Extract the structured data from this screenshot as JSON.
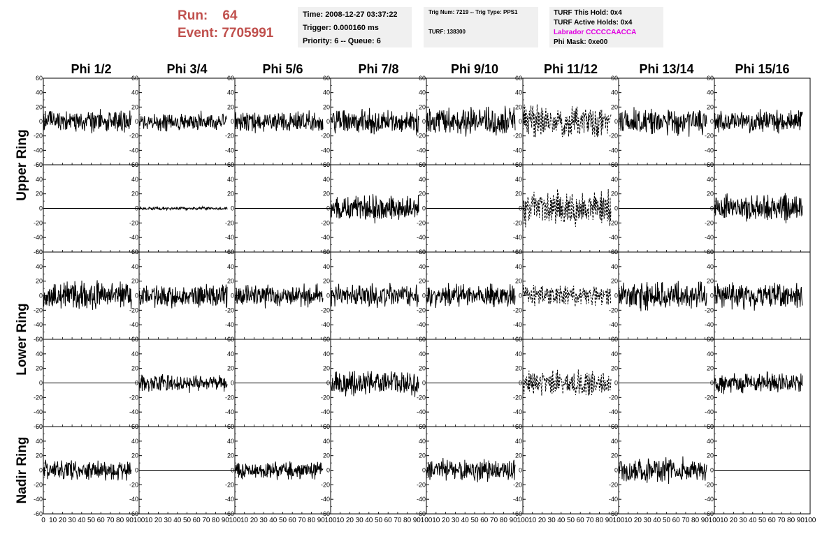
{
  "header": {
    "run_label": "Run:",
    "run_value": "64",
    "event_label": "Event:",
    "event_value": "7705991"
  },
  "info_box_1": {
    "time": "Time: 2008-12-27 03:37:22",
    "trigger": "Trigger: 0.000160 ms",
    "priority": "Priority: 6 -- Queue: 6"
  },
  "info_box_2": {
    "trig": "Trig Num: 7219 -- Trig Type: PPS1",
    "turf": "TURF: 138300"
  },
  "info_box_3": {
    "this_hold": "TURF This Hold: 0x4",
    "active_holds": "TURF Active Holds: 0x4",
    "labrador": "Labrador CCCCCAACCA",
    "phi_mask": "Phi Mask: 0xe00"
  },
  "colors": {
    "run_text": "#c0504d",
    "labrador_text": "#e000e0",
    "trace": "#000000",
    "info_box_bg": "#f0f0f0"
  },
  "chart_data": {
    "type": "line",
    "columns": [
      "Phi 1/2",
      "Phi 3/4",
      "Phi 5/6",
      "Phi 7/8",
      "Phi 9/10",
      "Phi 11/12",
      "Phi 13/14",
      "Phi 15/16"
    ],
    "row_groups": [
      {
        "label": "Upper Ring",
        "rows": [
          0,
          1
        ]
      },
      {
        "label": "Lower Ring",
        "rows": [
          2,
          3
        ]
      },
      {
        "label": "Nadir Ring",
        "rows": [
          4
        ]
      }
    ],
    "ylim": [
      -60,
      60
    ],
    "yticks": [
      -60,
      -40,
      -20,
      0,
      20,
      40,
      60
    ],
    "xlim": [
      0,
      100
    ],
    "xticks": [
      0,
      10,
      20,
      30,
      40,
      50,
      60,
      70,
      80,
      90,
      100
    ],
    "x_end": 92,
    "panels": [
      [
        {
          "type": "wave",
          "amp": 14,
          "dashed": false,
          "seed": 11
        },
        {
          "type": "wave",
          "amp": 12,
          "dashed": false,
          "seed": 12
        },
        {
          "type": "wave",
          "amp": 13,
          "dashed": false,
          "seed": 13
        },
        {
          "type": "wave",
          "amp": 16,
          "dashed": false,
          "seed": 14
        },
        {
          "type": "wave",
          "amp": 18,
          "dashed": false,
          "seed": 15
        },
        {
          "type": "wave",
          "amp": 20,
          "dashed": true,
          "seed": 16
        },
        {
          "type": "wave",
          "amp": 17,
          "dashed": false,
          "seed": 17
        },
        {
          "type": "wave",
          "amp": 14,
          "dashed": false,
          "seed": 18
        }
      ],
      [
        {
          "type": "flat"
        },
        {
          "type": "wave",
          "amp": 2,
          "dashed": false,
          "seed": 22
        },
        {
          "type": "flat"
        },
        {
          "type": "wave",
          "amp": 16,
          "dashed": false,
          "seed": 24
        },
        {
          "type": "flat"
        },
        {
          "type": "wave",
          "amp": 22,
          "dashed": true,
          "seed": 26
        },
        {
          "type": "flat"
        },
        {
          "type": "wave",
          "amp": 18,
          "dashed": false,
          "seed": 28
        }
      ],
      [
        {
          "type": "wave",
          "amp": 17,
          "dashed": false,
          "seed": 31
        },
        {
          "type": "wave",
          "amp": 15,
          "dashed": false,
          "seed": 32
        },
        {
          "type": "wave",
          "amp": 14,
          "dashed": false,
          "seed": 33
        },
        {
          "type": "wave",
          "amp": 14,
          "dashed": false,
          "seed": 34
        },
        {
          "type": "wave",
          "amp": 14,
          "dashed": false,
          "seed": 35
        },
        {
          "type": "wave",
          "amp": 13,
          "dashed": true,
          "seed": 36
        },
        {
          "type": "wave",
          "amp": 17,
          "dashed": false,
          "seed": 37
        },
        {
          "type": "wave",
          "amp": 16,
          "dashed": false,
          "seed": 38
        }
      ],
      [
        {
          "type": "flat"
        },
        {
          "type": "wave",
          "amp": 11,
          "dashed": false,
          "seed": 42
        },
        {
          "type": "flat"
        },
        {
          "type": "wave",
          "amp": 15,
          "dashed": false,
          "seed": 44
        },
        {
          "type": "flat"
        },
        {
          "type": "wave",
          "amp": 16,
          "dashed": true,
          "seed": 46
        },
        {
          "type": "flat"
        },
        {
          "type": "wave",
          "amp": 13,
          "dashed": false,
          "seed": 48
        }
      ],
      [
        {
          "type": "wave",
          "amp": 12,
          "dashed": false,
          "seed": 51
        },
        {
          "type": "flat"
        },
        {
          "type": "wave",
          "amp": 11,
          "dashed": false,
          "seed": 53
        },
        {
          "type": "none"
        },
        {
          "type": "wave",
          "amp": 14,
          "dashed": false,
          "seed": 55
        },
        {
          "type": "none"
        },
        {
          "type": "wave",
          "amp": 16,
          "dashed": false,
          "seed": 57
        },
        {
          "type": "flat"
        }
      ]
    ]
  }
}
